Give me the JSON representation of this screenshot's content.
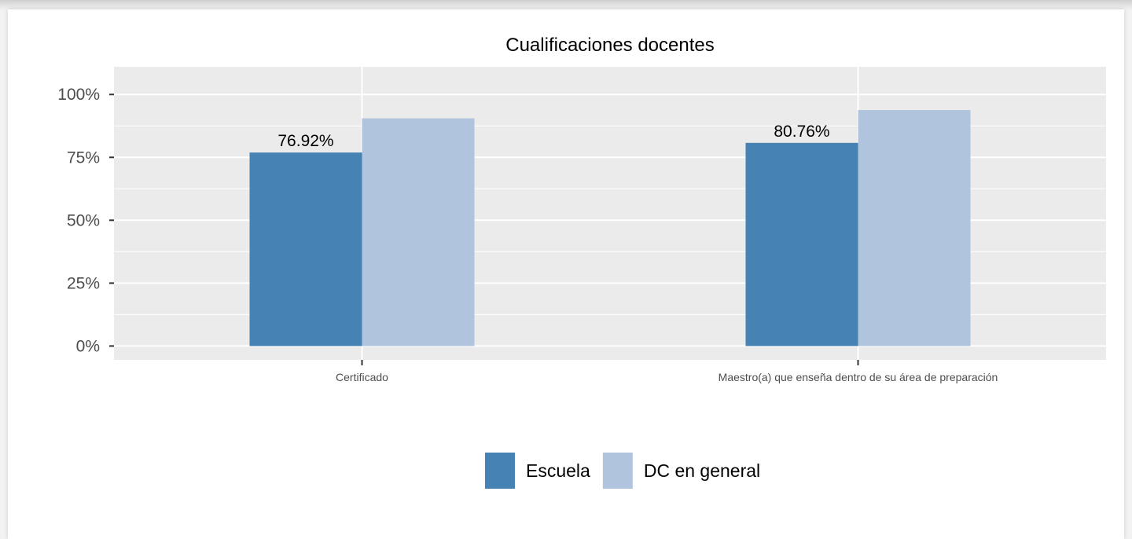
{
  "chart_data": {
    "type": "bar",
    "title": "Cualificaciones docentes",
    "xlabel": "",
    "ylabel": "",
    "categories": [
      "Certificado",
      "Maestro(a) que enseña dentro de su área de preparación"
    ],
    "series": [
      {
        "name": "Escuela",
        "values": [
          76.92,
          80.76
        ],
        "color": "#4682b4"
      },
      {
        "name": "DC en general",
        "values": [
          90.5,
          93.8
        ],
        "color": "#b0c4de"
      }
    ],
    "data_labels": [
      "76.92%",
      "80.76%"
    ],
    "ylim": [
      -5.5,
      111
    ],
    "y_ticks": [
      {
        "value": 0,
        "label": "0%"
      },
      {
        "value": 25,
        "label": "25%"
      },
      {
        "value": 50,
        "label": "50%"
      },
      {
        "value": 75,
        "label": "75%"
      },
      {
        "value": 100,
        "label": "100%"
      }
    ],
    "grid": true,
    "panel_color": "#ebebeb",
    "legend_position": "bottom"
  }
}
